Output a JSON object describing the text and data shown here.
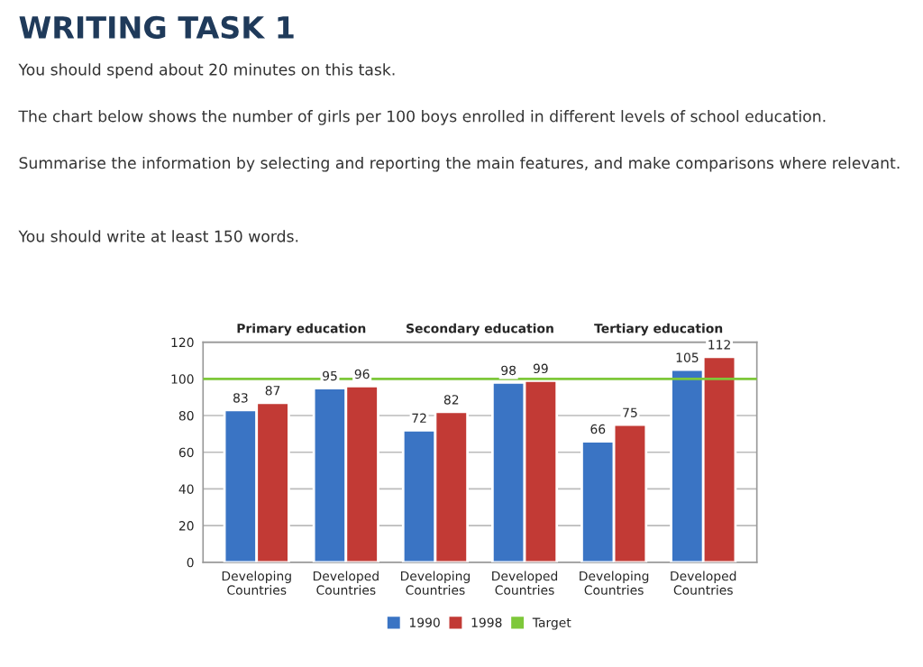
{
  "chart_data": {
    "type": "bar",
    "title": "WRITING TASK 1",
    "annotations": [
      "You should spend about 20 minutes on this task.",
      "The chart below shows the number of girls per 100 boys enrolled in different levels of school education.",
      "Summarise the information by selecting and reporting the main features, and make comparisons where relevant.",
      "You should write at least 150 words.",
      "Primary education",
      "Secondary education",
      "Tertiary education"
    ],
    "categories": [
      "Developing\nCountries",
      "Developed\nCountries",
      "Developing\nCountries",
      "Developed\nCountries",
      "Developing\nCountries",
      "Developed\nCountries"
    ],
    "series": [
      {
        "name": "1990",
        "color": "#3a74c4",
        "values": [
          83,
          95,
          72,
          98,
          66,
          105
        ]
      },
      {
        "name": "1998",
        "color": "#c23a35",
        "values": [
          87,
          96,
          82,
          99,
          75,
          112
        ]
      }
    ],
    "ref_lines": [
      {
        "axis": "y",
        "value": 100,
        "label": "Target",
        "color": "#7ec83a"
      }
    ],
    "ylim": [
      0,
      120
    ],
    "yticks": [
      0,
      20,
      40,
      60,
      80,
      100,
      120
    ],
    "data_labels": true,
    "grid": "y",
    "legend": "bottom"
  }
}
